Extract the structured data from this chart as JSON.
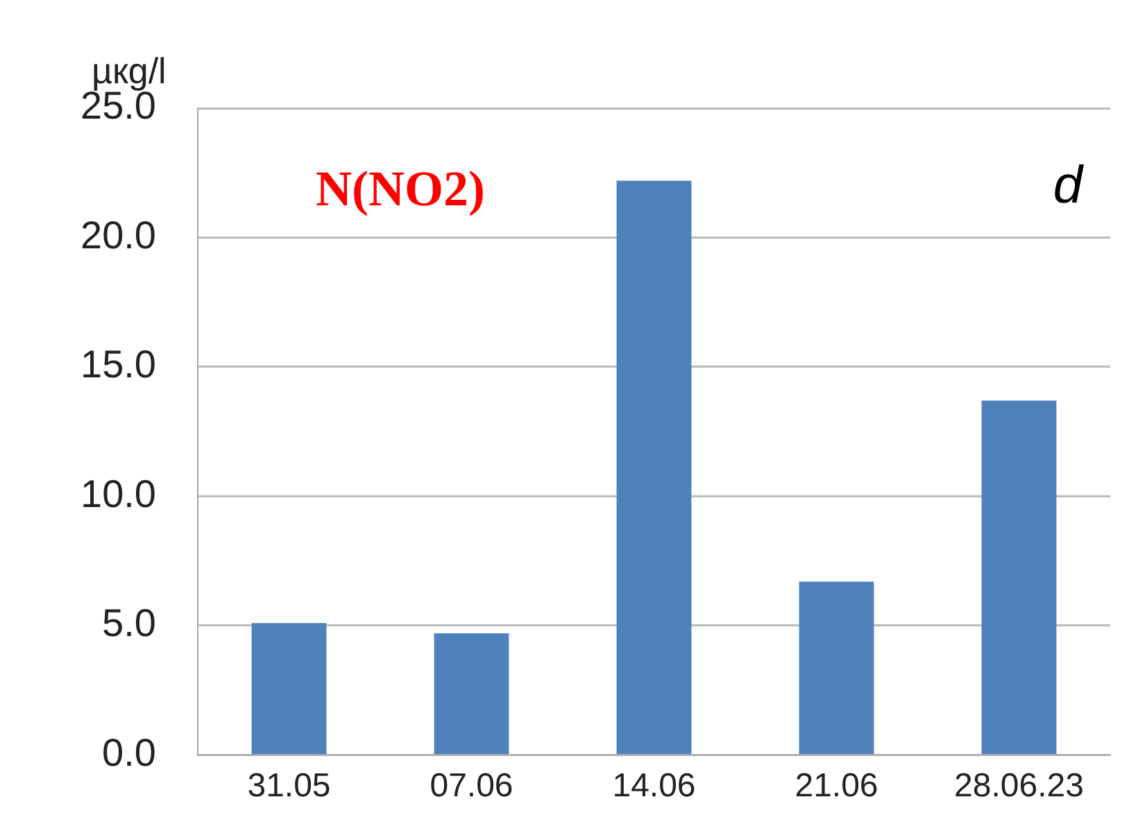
{
  "chart_data": {
    "type": "bar",
    "ylabel": "µкg/l",
    "annotations": [
      "N(NO2)",
      "d"
    ],
    "categories": [
      "31.05",
      "07.06",
      "14.06",
      "21.06",
      "28.06.23"
    ],
    "values": [
      5.1,
      4.7,
      22.2,
      6.7,
      13.7
    ],
    "color": "#4f81bd",
    "ylim": [
      0,
      25
    ],
    "yticks": [
      {
        "value": 0,
        "label": "0.0"
      },
      {
        "value": 5,
        "label": "5.0"
      },
      {
        "value": 10,
        "label": "10.0"
      },
      {
        "value": 15,
        "label": "15.0"
      },
      {
        "value": 20,
        "label": "20.0"
      },
      {
        "value": 25,
        "label": "25.0"
      }
    ],
    "grid": "y",
    "legend": false
  }
}
